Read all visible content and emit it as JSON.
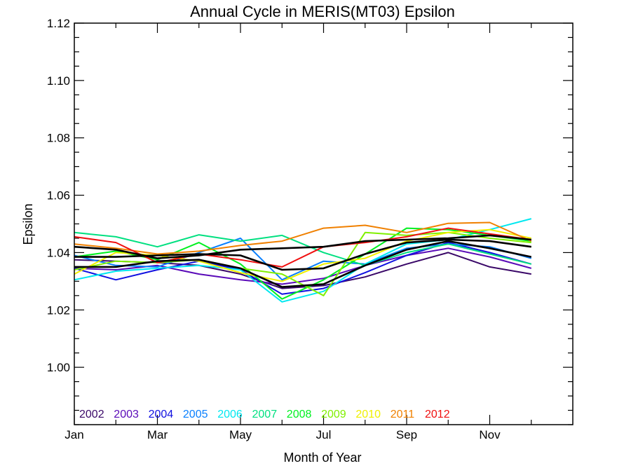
{
  "chart_data": {
    "type": "line",
    "title": "Annual Cycle in MERIS(MT03) Epsilon",
    "xlabel": "Month of Year",
    "ylabel": "Epsilon",
    "x": [
      1,
      2,
      3,
      4,
      5,
      6,
      7,
      8,
      9,
      10,
      11,
      12
    ],
    "xlim": [
      1,
      13
    ],
    "ylim": [
      0.98,
      1.12
    ],
    "x_ticks": [
      {
        "value": 1,
        "label": "Jan"
      },
      {
        "value": 3,
        "label": "Mar"
      },
      {
        "value": 5,
        "label": "May"
      },
      {
        "value": 7,
        "label": "Jul"
      },
      {
        "value": 9,
        "label": "Sep"
      },
      {
        "value": 11,
        "label": "Nov"
      }
    ],
    "x_minor_ticks": [
      2,
      4,
      6,
      8,
      10,
      12
    ],
    "y_ticks": [
      {
        "value": 1.0,
        "label": "1.00"
      },
      {
        "value": 1.02,
        "label": "1.02"
      },
      {
        "value": 1.04,
        "label": "1.04"
      },
      {
        "value": 1.06,
        "label": "1.06"
      },
      {
        "value": 1.08,
        "label": "1.08"
      },
      {
        "value": 1.1,
        "label": "1.10"
      },
      {
        "value": 1.12,
        "label": "1.12"
      }
    ],
    "y_minor_step": 0.005,
    "grid": false,
    "legend_position": "bottom-left",
    "series": [
      {
        "name": "2002",
        "color": "#3a0868",
        "values": [
          1.0375,
          1.037,
          1.0365,
          1.0355,
          1.0325,
          1.0275,
          1.0285,
          1.0315,
          1.036,
          1.04,
          1.035,
          1.0325
        ]
      },
      {
        "name": "2003",
        "color": "#5a0ab8",
        "values": [
          1.0345,
          1.034,
          1.0355,
          1.0325,
          1.0305,
          1.029,
          1.031,
          1.0355,
          1.039,
          1.0415,
          1.0385,
          1.0345
        ]
      },
      {
        "name": "2004",
        "color": "#1010e0",
        "values": [
          1.0345,
          1.0305,
          1.034,
          1.037,
          1.034,
          1.0255,
          1.0275,
          1.033,
          1.039,
          1.0435,
          1.04,
          1.036
        ]
      },
      {
        "name": "2005",
        "color": "#0a80ff",
        "values": [
          1.039,
          1.0355,
          1.035,
          1.04,
          1.045,
          1.0305,
          1.037,
          1.036,
          1.0415,
          1.043,
          1.042,
          1.038
        ]
      },
      {
        "name": "2006",
        "color": "#00e8f0",
        "values": [
          1.0305,
          1.0335,
          1.0345,
          1.0355,
          1.034,
          1.0228,
          1.0265,
          1.036,
          1.043,
          1.0445,
          1.048,
          1.0518
        ]
      },
      {
        "name": "2007",
        "color": "#00e080",
        "values": [
          1.047,
          1.0455,
          1.042,
          1.0462,
          1.044,
          1.046,
          1.04,
          1.0355,
          1.04,
          1.043,
          1.0395,
          1.036
        ]
      },
      {
        "name": "2008",
        "color": "#00f020",
        "values": [
          1.0385,
          1.0405,
          1.0375,
          1.0435,
          1.036,
          1.0238,
          1.0305,
          1.0395,
          1.0485,
          1.048,
          1.046,
          1.044
        ]
      },
      {
        "name": "2009",
        "color": "#80f000",
        "values": [
          1.034,
          1.037,
          1.0365,
          1.0375,
          1.0345,
          1.0325,
          1.025,
          1.047,
          1.046,
          1.047,
          1.045,
          1.0435
        ]
      },
      {
        "name": "2010",
        "color": "#f0f000",
        "values": [
          1.0325,
          1.04,
          1.039,
          1.037,
          1.033,
          1.03,
          1.036,
          1.038,
          1.044,
          1.047,
          1.048,
          1.045
        ]
      },
      {
        "name": "2011",
        "color": "#f08000",
        "values": [
          1.043,
          1.0415,
          1.0395,
          1.0405,
          1.0425,
          1.044,
          1.0485,
          1.0495,
          1.047,
          1.0502,
          1.0505,
          1.044
        ]
      },
      {
        "name": "2012",
        "color": "#f01010",
        "values": [
          1.0455,
          1.0435,
          1.0365,
          1.0395,
          1.0375,
          1.035,
          1.042,
          1.0435,
          1.0455,
          1.0485,
          1.0465,
          1.0445
        ]
      },
      {
        "color": "#000000",
        "values": [
          1.035,
          1.035,
          1.037,
          1.0375,
          1.0345,
          1.028,
          1.029,
          1.0355,
          1.041,
          1.044,
          1.0415,
          1.0385
        ]
      },
      {
        "color": "#000000",
        "values": [
          1.0385,
          1.0385,
          1.039,
          1.0395,
          1.039,
          1.034,
          1.0345,
          1.0395,
          1.0435,
          1.0445,
          1.044,
          1.042
        ]
      },
      {
        "color": "#000000",
        "values": [
          1.042,
          1.041,
          1.038,
          1.039,
          1.041,
          1.0415,
          1.042,
          1.044,
          1.0445,
          1.045,
          1.046,
          1.0445
        ]
      }
    ]
  }
}
